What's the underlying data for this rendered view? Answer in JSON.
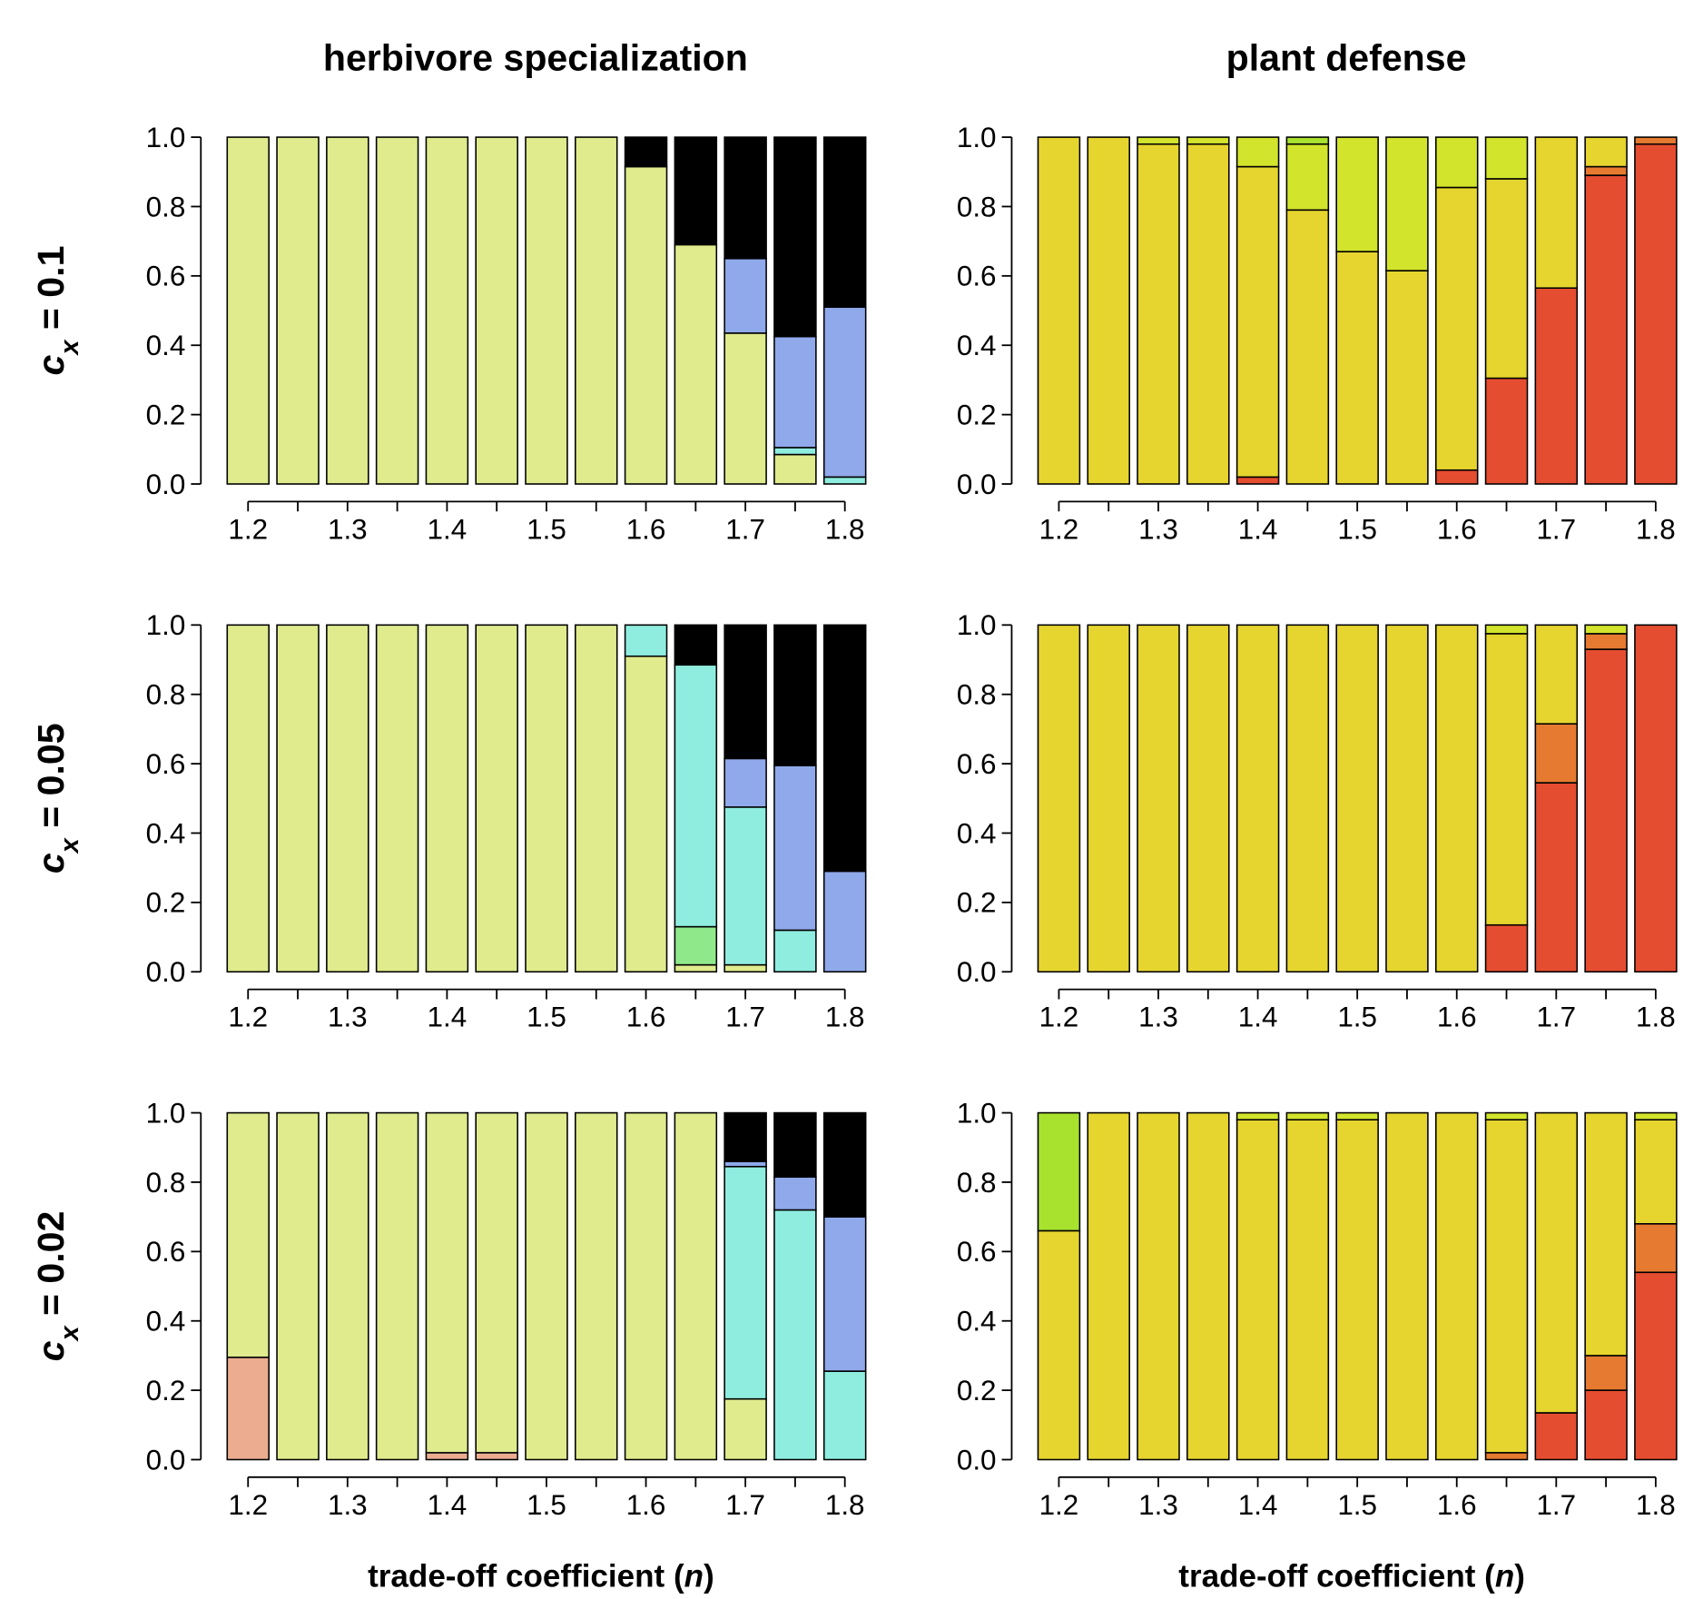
{
  "chart_data": [
    {
      "type": "bar",
      "stacked": true,
      "title": "herbivore specialization",
      "ylabel": [
        "c",
        "x",
        " = 0.1"
      ],
      "categories": [
        "1.2",
        null,
        "1.3",
        null,
        "1.4",
        null,
        "1.5",
        null,
        "1.6",
        null,
        "1.7",
        null,
        "1.8"
      ],
      "ylim": [
        0,
        1
      ],
      "yticks": [
        {
          "value": 0,
          "label": "0.0"
        },
        0.2,
        0.4,
        0.6,
        0.8,
        {
          "value": 1,
          "label": "1.0"
        }
      ],
      "series": [
        {
          "color": "#EBAC90",
          "values": [
            0,
            0,
            0,
            0,
            0,
            0,
            0,
            0,
            0,
            0,
            0,
            0,
            0
          ]
        },
        {
          "color": "#DFEB8D",
          "values": [
            1,
            1,
            1,
            1,
            1,
            1,
            1,
            1,
            0.915,
            0.69,
            0.435,
            0.085,
            0
          ]
        },
        {
          "color": "#8FE98A",
          "values": [
            0,
            0,
            0,
            0,
            0,
            0,
            0,
            0,
            0,
            0,
            0,
            0,
            0
          ]
        },
        {
          "color": "#8FEDDF",
          "values": [
            0,
            0,
            0,
            0,
            0,
            0,
            0,
            0,
            0,
            0,
            0,
            0.02,
            0.02
          ]
        },
        {
          "color": "#8FA9EA",
          "values": [
            0,
            0,
            0,
            0,
            0,
            0,
            0,
            0,
            0,
            0,
            0.215,
            0.32,
            0.49
          ]
        },
        {
          "color": "#000000",
          "values": [
            0,
            0,
            0,
            0,
            0,
            0,
            0,
            0,
            0.085,
            0.31,
            0.35,
            0.575,
            0.49
          ]
        }
      ]
    },
    {
      "type": "bar",
      "stacked": true,
      "title": "plant defense",
      "categories": [
        "1.2",
        null,
        "1.3",
        null,
        "1.4",
        null,
        "1.5",
        null,
        "1.6",
        null,
        "1.7",
        null,
        "1.8"
      ],
      "ylim": [
        0,
        1
      ],
      "yticks": [
        {
          "value": 0,
          "label": "0.0"
        },
        0.2,
        0.4,
        0.6,
        0.8,
        {
          "value": 1,
          "label": "1.0"
        }
      ],
      "series": [
        {
          "color": "#E54D30",
          "values": [
            0,
            0,
            0,
            0,
            0.02,
            0,
            0,
            0,
            0.04,
            0.305,
            0.565,
            0.89,
            0.98
          ]
        },
        {
          "color": "#E57A30",
          "values": [
            0,
            0,
            0,
            0,
            0,
            0,
            0,
            0,
            0,
            0,
            0,
            0.025,
            0.02
          ]
        },
        {
          "color": "#E6D52E",
          "values": [
            1,
            1,
            0.98,
            0.98,
            0.895,
            0.79,
            0.67,
            0.615,
            0.815,
            0.575,
            0.435,
            0.085,
            0
          ]
        },
        {
          "color": "#D2E42C",
          "values": [
            0,
            0,
            0.02,
            0.02,
            0.085,
            0.19,
            0.33,
            0.385,
            0.145,
            0.12,
            0,
            0,
            0
          ]
        },
        {
          "color": "#A8E22E",
          "values": [
            0,
            0,
            0,
            0,
            0,
            0.02,
            0,
            0,
            0,
            0,
            0,
            0,
            0
          ]
        }
      ]
    },
    {
      "type": "bar",
      "stacked": true,
      "ylabel": [
        "c",
        "x",
        " = 0.05"
      ],
      "categories": [
        "1.2",
        null,
        "1.3",
        null,
        "1.4",
        null,
        "1.5",
        null,
        "1.6",
        null,
        "1.7",
        null,
        "1.8"
      ],
      "ylim": [
        0,
        1
      ],
      "yticks": [
        {
          "value": 0,
          "label": "0.0"
        },
        0.2,
        0.4,
        0.6,
        0.8,
        {
          "value": 1,
          "label": "1.0"
        }
      ],
      "series": [
        {
          "color": "#EBAC90",
          "values": [
            0,
            0,
            0,
            0,
            0,
            0,
            0,
            0,
            0,
            0,
            0,
            0,
            0
          ]
        },
        {
          "color": "#DFEB8D",
          "values": [
            1,
            1,
            1,
            1,
            1,
            1,
            1,
            1,
            0.91,
            0.02,
            0.02,
            0,
            0
          ]
        },
        {
          "color": "#8FE98A",
          "values": [
            0,
            0,
            0,
            0,
            0,
            0,
            0,
            0,
            0,
            0.11,
            0,
            0,
            0
          ]
        },
        {
          "color": "#8FEDDF",
          "values": [
            0,
            0,
            0,
            0,
            0,
            0,
            0,
            0,
            0.09,
            0.755,
            0.455,
            0.12,
            0
          ]
        },
        {
          "color": "#8FA9EA",
          "values": [
            0,
            0,
            0,
            0,
            0,
            0,
            0,
            0,
            0,
            0,
            0.14,
            0.475,
            0.29
          ]
        },
        {
          "color": "#000000",
          "values": [
            0,
            0,
            0,
            0,
            0,
            0,
            0,
            0,
            0,
            0.115,
            0.385,
            0.405,
            0.71
          ]
        }
      ]
    },
    {
      "type": "bar",
      "stacked": true,
      "categories": [
        "1.2",
        null,
        "1.3",
        null,
        "1.4",
        null,
        "1.5",
        null,
        "1.6",
        null,
        "1.7",
        null,
        "1.8"
      ],
      "ylim": [
        0,
        1
      ],
      "yticks": [
        {
          "value": 0,
          "label": "0.0"
        },
        0.2,
        0.4,
        0.6,
        0.8,
        {
          "value": 1,
          "label": "1.0"
        }
      ],
      "series": [
        {
          "color": "#E54D30",
          "values": [
            0,
            0,
            0,
            0,
            0,
            0,
            0,
            0,
            0,
            0.135,
            0.545,
            0.93,
            1
          ]
        },
        {
          "color": "#E57A30",
          "values": [
            0,
            0,
            0,
            0,
            0,
            0,
            0,
            0,
            0,
            0,
            0.17,
            0.045,
            0
          ]
        },
        {
          "color": "#E6D52E",
          "values": [
            1,
            1,
            1,
            1,
            1,
            1,
            1,
            1,
            1,
            0.84,
            0.285,
            0,
            0
          ]
        },
        {
          "color": "#D2E42C",
          "values": [
            0,
            0,
            0,
            0,
            0,
            0,
            0,
            0,
            0,
            0.025,
            0,
            0.025,
            0
          ]
        },
        {
          "color": "#A8E22E",
          "values": [
            0,
            0,
            0,
            0,
            0,
            0,
            0,
            0,
            0,
            0,
            0,
            0,
            0
          ]
        }
      ]
    },
    {
      "type": "bar",
      "stacked": true,
      "ylabel": [
        "c",
        "x",
        " = 0.02"
      ],
      "xlabel": [
        "trade-off coefficient (",
        "n",
        ")"
      ],
      "categories": [
        "1.2",
        null,
        "1.3",
        null,
        "1.4",
        null,
        "1.5",
        null,
        "1.6",
        null,
        "1.7",
        null,
        "1.8"
      ],
      "ylim": [
        0,
        1
      ],
      "yticks": [
        {
          "value": 0,
          "label": "0.0"
        },
        0.2,
        0.4,
        0.6,
        0.8,
        {
          "value": 1,
          "label": "1.0"
        }
      ],
      "series": [
        {
          "color": "#EBAC90",
          "values": [
            0.295,
            0,
            0,
            0,
            0.02,
            0.02,
            0,
            0,
            0,
            0,
            0,
            0,
            0
          ]
        },
        {
          "color": "#DFEB8D",
          "values": [
            0.705,
            1,
            1,
            1,
            0.98,
            0.98,
            1,
            1,
            1,
            1,
            0.175,
            0,
            0
          ]
        },
        {
          "color": "#8FE98A",
          "values": [
            0,
            0,
            0,
            0,
            0,
            0,
            0,
            0,
            0,
            0,
            0,
            0,
            0
          ]
        },
        {
          "color": "#8FEDDF",
          "values": [
            0,
            0,
            0,
            0,
            0,
            0,
            0,
            0,
            0,
            0,
            0.67,
            0.72,
            0.255
          ]
        },
        {
          "color": "#8FA9EA",
          "values": [
            0,
            0,
            0,
            0,
            0,
            0,
            0,
            0,
            0,
            0,
            0.015,
            0.095,
            0.445
          ]
        },
        {
          "color": "#000000",
          "values": [
            0,
            0,
            0,
            0,
            0,
            0,
            0,
            0,
            0,
            0,
            0.14,
            0.185,
            0.3
          ]
        }
      ]
    },
    {
      "type": "bar",
      "stacked": true,
      "xlabel": [
        "trade-off coefficient (",
        "n",
        ")"
      ],
      "categories": [
        "1.2",
        null,
        "1.3",
        null,
        "1.4",
        null,
        "1.5",
        null,
        "1.6",
        null,
        "1.7",
        null,
        "1.8"
      ],
      "ylim": [
        0,
        1
      ],
      "yticks": [
        {
          "value": 0,
          "label": "0.0"
        },
        0.2,
        0.4,
        0.6,
        0.8,
        {
          "value": 1,
          "label": "1.0"
        }
      ],
      "series": [
        {
          "color": "#E54D30",
          "values": [
            0,
            0,
            0,
            0,
            0,
            0,
            0,
            0,
            0,
            0,
            0.135,
            0.2,
            0.54
          ]
        },
        {
          "color": "#E57A30",
          "values": [
            0,
            0,
            0,
            0,
            0,
            0,
            0,
            0,
            0,
            0.02,
            0,
            0.1,
            0.14
          ]
        },
        {
          "color": "#E6D52E",
          "values": [
            0.66,
            1,
            1,
            1,
            0.98,
            0.98,
            0.98,
            1,
            1,
            0.96,
            0.865,
            0.7,
            0.3
          ]
        },
        {
          "color": "#D2E42C",
          "values": [
            0,
            0,
            0,
            0,
            0.02,
            0.02,
            0.02,
            0,
            0,
            0.02,
            0,
            0,
            0.02
          ]
        },
        {
          "color": "#A8E22E",
          "values": [
            0.34,
            0,
            0,
            0,
            0,
            0,
            0,
            0,
            0,
            0,
            0,
            0,
            0
          ]
        }
      ]
    }
  ]
}
